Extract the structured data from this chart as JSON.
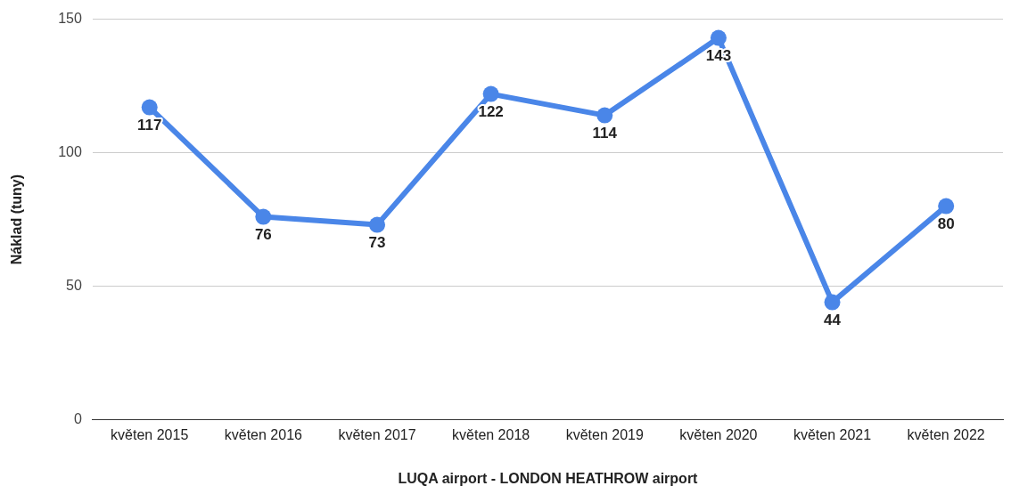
{
  "chart_data": {
    "type": "line",
    "xlabel": "LUQA airport - LONDON HEATHROW airport",
    "ylabel": "Náklad (tuny)",
    "categories": [
      "květen 2015",
      "květen 2016",
      "květen 2017",
      "květen 2018",
      "květen 2019",
      "květen 2020",
      "květen 2021",
      "květen 2022"
    ],
    "series": [
      {
        "color": "#4a86e8",
        "values": [
          117,
          76,
          73,
          122,
          114,
          143,
          44,
          80
        ]
      }
    ],
    "ylim": [
      0,
      150
    ],
    "yticks": [
      0,
      50,
      100,
      150
    ],
    "grid": "y",
    "legend": false,
    "marker": "circle",
    "line_style": "solid",
    "data_labels": true
  }
}
